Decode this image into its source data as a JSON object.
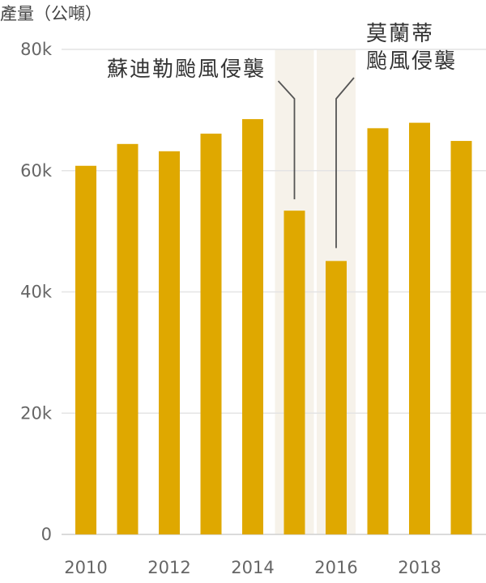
{
  "chart_data": {
    "type": "bar",
    "ylabel": "產量（公噸）",
    "categories": [
      "2010",
      "2011",
      "2012",
      "2013",
      "2014",
      "2015",
      "2016",
      "2017",
      "2018",
      "2019"
    ],
    "values": [
      60800,
      64400,
      63200,
      66100,
      68500,
      53400,
      45100,
      67000,
      67900,
      64900
    ],
    "ylim": [
      0,
      80000
    ],
    "yticks": [
      0,
      20000,
      40000,
      60000,
      80000
    ],
    "ytick_labels": [
      "0",
      "20k",
      "40k",
      "60k",
      "80k"
    ],
    "xtick_labels": [
      "2010",
      "2012",
      "2014",
      "2016",
      "2018"
    ],
    "grid": true,
    "bar_color": "#dfa800",
    "highlight_color": "#f6f2ea",
    "annotations": [
      {
        "category": "2015",
        "lines": [
          "蘇迪勒颱風侵襲"
        ]
      },
      {
        "category": "2016",
        "lines": [
          "莫蘭蒂",
          "颱風侵襲"
        ]
      }
    ]
  }
}
